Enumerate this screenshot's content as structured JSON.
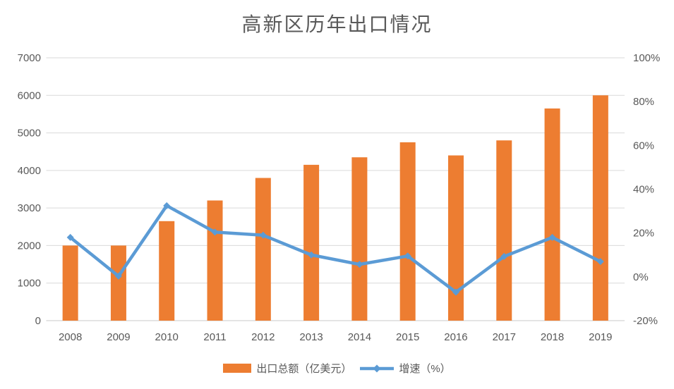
{
  "colors": {
    "bar": "#ED7D31",
    "line": "#5B9BD5",
    "grid": "#D9D9D9",
    "axis_line": "#C8C8C8",
    "text": "#595959",
    "background": "#FFFFFF"
  },
  "legend": {
    "bar_label": "出口总额（亿美元）",
    "line_label": "增速（%）"
  },
  "chart_data": {
    "type": "combo",
    "title": "高新区历年出口情况",
    "categories": [
      "2008",
      "2009",
      "2010",
      "2011",
      "2012",
      "2013",
      "2014",
      "2015",
      "2016",
      "2017",
      "2018",
      "2019"
    ],
    "series": [
      {
        "name": "出口总额（亿美元）",
        "type": "bar",
        "axis": "left",
        "values": [
          2000,
          2000,
          2650,
          3200,
          3800,
          4150,
          4350,
          4750,
          4400,
          4800,
          5650,
          6000
        ]
      },
      {
        "name": "增速（%）",
        "type": "line",
        "axis": "right",
        "values": [
          18,
          0.3,
          32.5,
          20.4,
          19,
          10,
          5.7,
          9.5,
          -7,
          9.3,
          18,
          7
        ]
      }
    ],
    "left_axis": {
      "min": 0,
      "max": 7000,
      "step": 1000,
      "ticks": [
        "0",
        "1000",
        "2000",
        "3000",
        "4000",
        "5000",
        "6000",
        "7000"
      ]
    },
    "right_axis": {
      "min": -20,
      "max": 100,
      "step": 20,
      "ticks": [
        "-20%",
        "0%",
        "20%",
        "40%",
        "60%",
        "80%",
        "100%"
      ]
    },
    "grid": true,
    "legend_position": "bottom"
  }
}
